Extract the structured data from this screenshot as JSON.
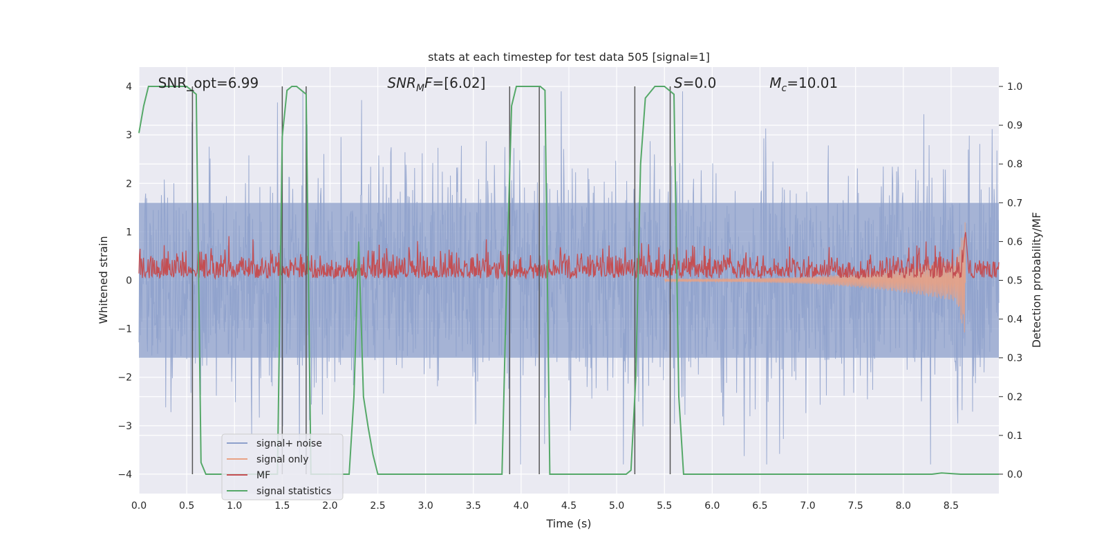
{
  "chart_data": {
    "type": "line",
    "title": "stats at each timestep for test data 505 [signal=1]",
    "xlabel": "Time (s)",
    "ylabel_left": "Whitened strain",
    "ylabel_right": "Detection probability/MF",
    "xlim": [
      0.0,
      9.0
    ],
    "ylim_left": [
      -4.4,
      4.4
    ],
    "ylim_right": [
      -0.05,
      1.05
    ],
    "x_ticks": [
      "0.0",
      "0.5",
      "1.0",
      "1.5",
      "2.0",
      "2.5",
      "3.0",
      "3.5",
      "4.0",
      "4.5",
      "5.0",
      "5.5",
      "6.0",
      "6.5",
      "7.0",
      "7.5",
      "8.0",
      "8.5"
    ],
    "y_ticks_left": [
      "−4",
      "−3",
      "−2",
      "−1",
      "0",
      "1",
      "2",
      "3",
      "4"
    ],
    "y_ticks_right": [
      "0.0",
      "0.1",
      "0.2",
      "0.3",
      "0.4",
      "0.5",
      "0.6",
      "0.7",
      "0.8",
      "0.9",
      "1.0"
    ],
    "grid": true,
    "legend_position": "lower-left",
    "annotations": [
      {
        "name": "snr-opt",
        "text": "SNR_opt=6.99",
        "x": 0.2,
        "y": 4.0
      },
      {
        "name": "snr-mf",
        "text": "SNR_MF=[6.02]",
        "x": 2.6,
        "y": 4.0
      },
      {
        "name": "s-value",
        "text": "S=0.0",
        "x": 5.6,
        "y": 4.0
      },
      {
        "name": "mc-value",
        "text": "M_c=10.01",
        "x": 6.6,
        "y": 4.0
      }
    ],
    "series": [
      {
        "name": "signal+ noise",
        "color": "#8da0cb",
        "axis": "left",
        "description": "noise",
        "amplitude_typical": 1.5,
        "amplitude_max": 4.0
      },
      {
        "name": "signal only",
        "color": "#e8a184",
        "axis": "left",
        "chirp_start": 5.5,
        "chirp_end": 8.65,
        "amplitude_max": 1.3
      },
      {
        "name": "MF",
        "color": "#c44e52",
        "axis": "right",
        "baseline": 0.5,
        "peak_x": 8.65,
        "peak_y": 0.63
      },
      {
        "name": "signal statistics",
        "color": "#55a868",
        "axis": "right",
        "x": [
          0.0,
          0.05,
          0.1,
          0.2,
          0.3,
          0.4,
          0.5,
          0.55,
          0.6,
          0.65,
          0.7,
          0.8,
          0.9,
          1.0,
          1.2,
          1.4,
          1.45,
          1.5,
          1.55,
          1.6,
          1.65,
          1.7,
          1.75,
          1.8,
          1.9,
          2.0,
          2.1,
          2.2,
          2.25,
          2.3,
          2.35,
          2.4,
          2.45,
          2.5,
          2.6,
          3.0,
          3.5,
          3.8,
          3.85,
          3.9,
          3.95,
          4.0,
          4.1,
          4.2,
          4.25,
          4.3,
          4.35,
          4.4,
          4.6,
          5.0,
          5.1,
          5.15,
          5.2,
          5.25,
          5.3,
          5.4,
          5.5,
          5.55,
          5.6,
          5.65,
          5.7,
          5.8,
          6.5,
          7.5,
          8.0,
          8.3,
          8.4,
          8.6,
          9.0
        ],
        "y": [
          0.88,
          0.95,
          1.0,
          1.0,
          1.0,
          1.0,
          1.0,
          0.99,
          0.98,
          0.03,
          0.0,
          0.0,
          0.0,
          0.0,
          0.0,
          0.0,
          0.0,
          0.87,
          0.99,
          1.0,
          1.0,
          0.99,
          0.98,
          0.0,
          0.0,
          0.0,
          0.0,
          0.0,
          0.2,
          0.6,
          0.2,
          0.12,
          0.05,
          0.0,
          0.0,
          0.0,
          0.0,
          0.0,
          0.52,
          0.95,
          1.0,
          1.0,
          1.0,
          1.0,
          0.99,
          0.0,
          0.0,
          0.0,
          0.0,
          0.0,
          0.0,
          0.01,
          0.25,
          0.8,
          0.97,
          1.0,
          1.0,
          0.99,
          0.98,
          0.2,
          0.0,
          0.0,
          0.0,
          0.0,
          0.0,
          0.0,
          0.003,
          0.0,
          0.0
        ]
      }
    ],
    "vertical_lines": [
      0.56,
      1.5,
      1.75,
      3.88,
      4.19,
      5.19,
      5.56
    ]
  },
  "legend_labels": {
    "signal_noise": "signal+ noise",
    "signal_only": "signal only",
    "mf": "MF",
    "signal_statistics": "signal statistics"
  },
  "colors": {
    "background": "#eaeaf2",
    "grid": "#ffffff",
    "signal_noise": "#8da0cb",
    "signal_only": "#e8a184",
    "mf": "#c44e52",
    "signal_statistics": "#55a868",
    "vline": "#555555"
  }
}
